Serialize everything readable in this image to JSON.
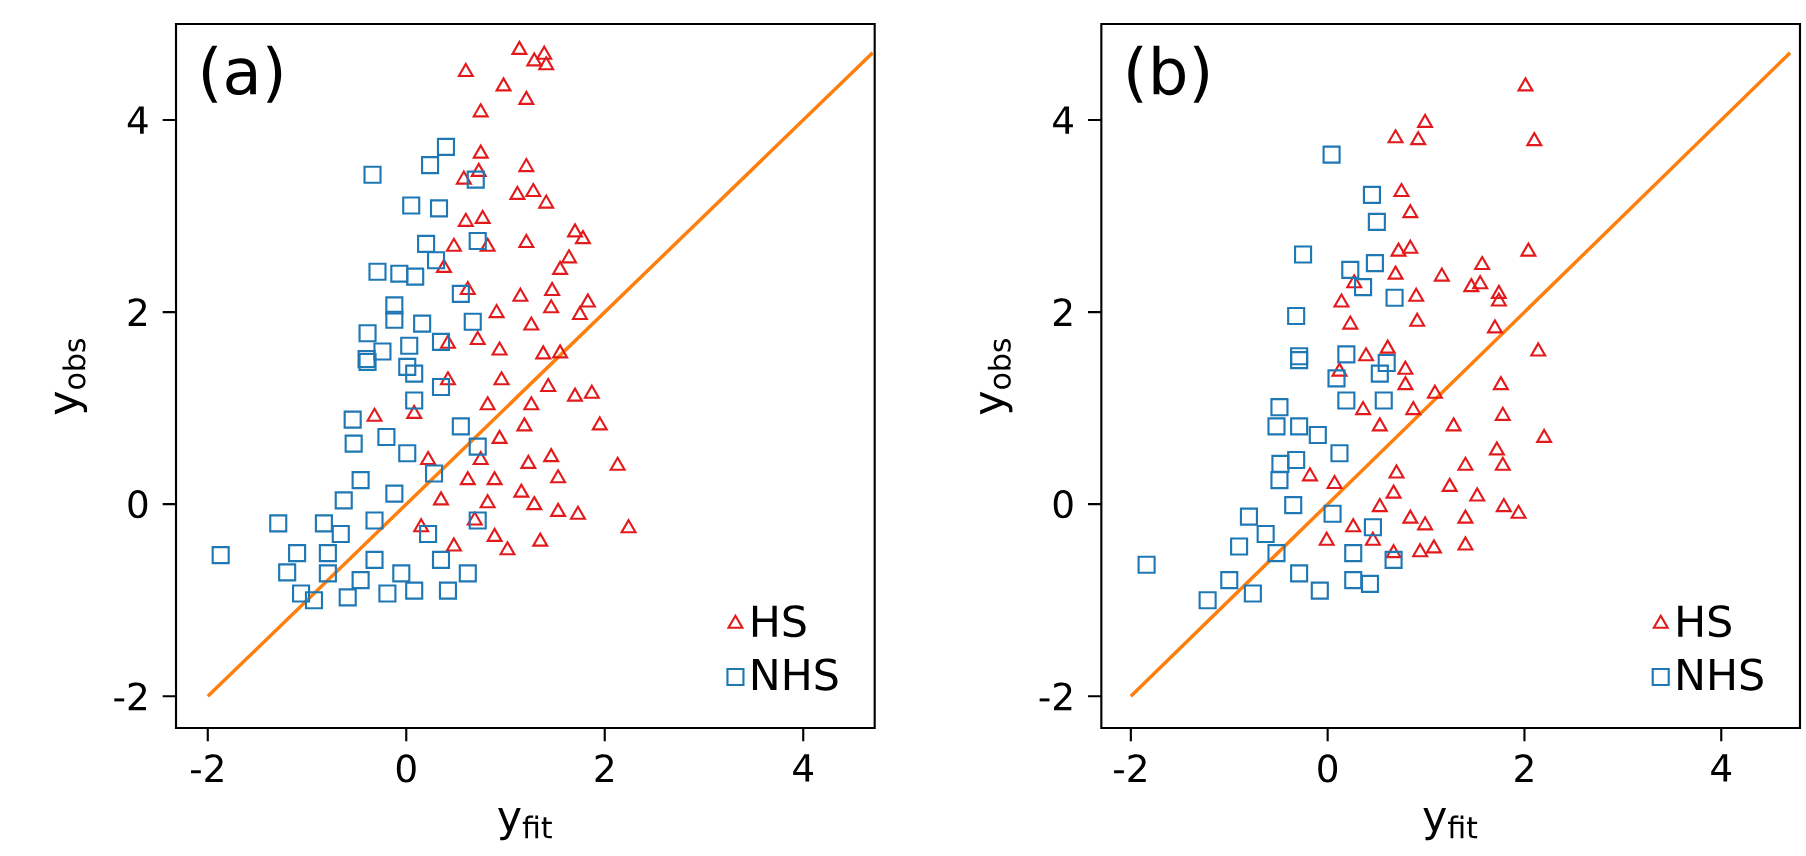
{
  "chart_data": [
    {
      "type": "scatter",
      "xlabel": "y$_{fit}$",
      "ylabel": "y$_{obs}$",
      "annotations": [
        "(a)"
      ],
      "xlim": [
        -2.32,
        4.72
      ],
      "ylim": [
        -2.33,
        5.0
      ],
      "xticks": [
        -2,
        0,
        2,
        4
      ],
      "yticks": [
        -2,
        0,
        2,
        4
      ],
      "legend": "bottom right",
      "series": [
        {
          "name": "HS",
          "color": "#e31a1c",
          "marker": "triangle",
          "x": [
            1.14,
            1.29,
            1.39,
            1.41,
            0.6,
            0.98,
            1.21,
            0.75,
            0.75,
            1.21,
            0.58,
            0.73,
            1.12,
            1.28,
            1.41,
            0.6,
            0.77,
            1.21,
            1.7,
            1.78,
            0.82,
            0.48,
            1.64,
            1.55,
            0.38,
            0.62,
            1.15,
            1.47,
            1.83,
            1.75,
            1.46,
            0.91,
            1.26,
            0.72,
            0.94,
            1.38,
            1.55,
            0.42,
            1.87,
            1.7,
            1.95,
            2.13,
            2.24,
            1.46,
            1.53,
            1.19,
            0.94,
            1.23,
            1.16,
            1.29,
            1.53,
            1.73,
            1.35,
            1.02,
            0.89,
            0.82,
            0.89,
            0.62,
            0.69,
            0.48,
            0.35,
            0.22,
            0.08,
            -0.32,
            0.82,
            1.26,
            1.43,
            0.96,
            0.42,
            0.15,
            0.75
          ],
          "values": [
            4.73,
            4.61,
            4.68,
            4.57,
            4.5,
            4.35,
            4.21,
            4.08,
            3.65,
            3.51,
            3.38,
            3.46,
            3.22,
            3.25,
            3.13,
            2.94,
            2.97,
            2.72,
            2.83,
            2.76,
            2.68,
            2.68,
            2.56,
            2.44,
            2.46,
            2.23,
            2.16,
            2.22,
            2.1,
            1.97,
            2.04,
            1.99,
            1.86,
            1.71,
            1.6,
            1.56,
            1.57,
            1.67,
            1.15,
            1.12,
            0.82,
            0.4,
            -0.25,
            0.49,
            0.27,
            0.81,
            0.68,
            0.42,
            0.12,
            -0.01,
            -0.08,
            -0.11,
            -0.39,
            -0.48,
            -0.34,
            0.01,
            0.25,
            0.25,
            -0.17,
            -0.44,
            0.04,
            0.46,
            0.94,
            0.91,
            1.03,
            1.03,
            1.22,
            1.29,
            1.29,
            -0.24,
            0.46
          ]
        },
        {
          "name": "NHS",
          "color": "#1f77b4",
          "marker": "square",
          "x": [
            0.4,
            0.24,
            -0.34,
            0.7,
            0.05,
            0.33,
            0.2,
            0.72,
            -0.29,
            -0.07,
            0.09,
            0.3,
            0.55,
            -0.12,
            -0.12,
            0.16,
            0.67,
            -0.39,
            -0.4,
            -0.24,
            0.03,
            0.35,
            0.01,
            -1.87,
            -1.29,
            -0.83,
            -1.1,
            -1.2,
            -1.06,
            -0.93,
            -0.59,
            -0.19,
            0.08,
            0.42,
            0.62,
            0.72,
            0.72,
            0.55,
            -0.54,
            -0.53,
            -0.2,
            -0.63,
            -0.66,
            -0.32,
            -0.46,
            -0.12,
            0.01,
            0.28,
            0.22,
            -0.32,
            -0.79,
            0.08,
            0.35,
            0.08,
            -0.39,
            -0.79,
            -0.05,
            0.35,
            -0.46
          ],
          "values": [
            3.72,
            3.53,
            3.43,
            3.38,
            3.11,
            3.08,
            2.71,
            2.74,
            2.42,
            2.4,
            2.37,
            2.54,
            2.19,
            2.07,
            1.92,
            1.88,
            1.9,
            1.78,
            1.51,
            1.59,
            1.65,
            1.69,
            1.43,
            -0.53,
            -0.2,
            -0.2,
            -0.51,
            -0.71,
            -0.93,
            -1.0,
            -0.97,
            -0.93,
            -0.9,
            -0.9,
            -0.72,
            -0.17,
            0.6,
            0.81,
            0.88,
            0.63,
            0.7,
            0.04,
            -0.31,
            -0.17,
            0.25,
            0.11,
            0.53,
            0.32,
            -0.31,
            -0.58,
            -0.72,
            1.08,
            1.22,
            1.36,
            1.48,
            -0.51,
            -0.72,
            -0.58,
            -0.79
          ]
        },
        {
          "type": "line",
          "color": "#ff7f0e",
          "x": [
            -2,
            4.7
          ],
          "values": [
            -2,
            4.7
          ]
        }
      ]
    },
    {
      "type": "scatter",
      "xlabel": "y$_{fit}$",
      "ylabel": "y$_{obs}$",
      "annotations": [
        "(b)"
      ],
      "xlim": [
        -2.3,
        4.8
      ],
      "ylim": [
        -2.33,
        5.0
      ],
      "xticks": [
        -2,
        0,
        2,
        4
      ],
      "yticks": [
        -2,
        0,
        2,
        4
      ],
      "legend": "bottom right",
      "series": [
        {
          "name": "HS",
          "color": "#e31a1c",
          "marker": "triangle",
          "x": [
            2.01,
            2.1,
            0.99,
            0.69,
            0.92,
            0.75,
            0.84,
            0.72,
            0.84,
            2.04,
            0.69,
            1.16,
            1.57,
            1.46,
            1.55,
            1.74,
            1.74,
            0.9,
            0.14,
            0.27,
            0.23,
            0.91,
            1.7,
            2.14,
            0.61,
            0.39,
            0.79,
            1.76,
            1.78,
            2.2,
            1.28,
            1.09,
            0.79,
            1.72,
            1.78,
            1.4,
            1.24,
            1.52,
            1.79,
            1.94,
            1.4,
            1.4,
            0.99,
            1.08,
            0.94,
            0.84,
            0.67,
            0.7,
            0.53,
            0.36,
            0.87,
            0.07,
            -0.18,
            -0.01,
            0.26,
            0.46,
            0.67,
            0.53,
            0.12
          ],
          "values": [
            4.35,
            3.78,
            3.97,
            3.81,
            3.79,
            3.25,
            3.03,
            2.63,
            2.66,
            2.63,
            2.39,
            2.37,
            2.49,
            2.26,
            2.29,
            2.19,
            2.11,
            2.16,
            2.1,
            2.3,
            1.87,
            1.9,
            1.83,
            1.59,
            1.62,
            1.54,
            1.4,
            1.24,
            0.92,
            0.69,
            0.81,
            1.15,
            1.24,
            0.56,
            0.4,
            0.4,
            0.18,
            0.08,
            -0.03,
            -0.1,
            -0.15,
            -0.43,
            -0.22,
            -0.46,
            -0.5,
            -0.15,
            0.11,
            0.32,
            0.81,
            0.98,
            0.98,
            0.21,
            0.29,
            -0.38,
            -0.24,
            -0.38,
            -0.51,
            -0.03,
            1.38
          ]
        },
        {
          "name": "NHS",
          "color": "#1f77b4",
          "marker": "square",
          "x": [
            0.04,
            0.45,
            0.5,
            -0.25,
            0.23,
            0.48,
            0.36,
            0.68,
            -0.32,
            -0.29,
            0.19,
            0.6,
            -1.84,
            -1.22,
            -1.0,
            -0.76,
            -0.49,
            -0.52,
            -0.29,
            -0.1,
            -0.48,
            -0.32,
            -0.49,
            -0.8,
            -0.35,
            -0.63,
            -0.52,
            -0.29,
            -0.08,
            0.26,
            0.43,
            0.09,
            -0.29,
            0.19,
            0.57,
            0.53,
            0.12,
            0.05,
            0.46,
            0.26,
            0.67,
            -0.9
          ],
          "values": [
            3.64,
            3.22,
            2.94,
            2.6,
            2.44,
            2.51,
            2.26,
            2.15,
            1.96,
            1.54,
            1.56,
            1.47,
            -0.63,
            -1.0,
            -0.79,
            -0.93,
            1.01,
            0.81,
            0.81,
            0.72,
            0.42,
            0.46,
            0.25,
            -0.13,
            -0.01,
            -0.31,
            -0.51,
            -0.72,
            -0.9,
            -0.79,
            -0.83,
            1.31,
            1.5,
            1.08,
            1.08,
            1.36,
            0.53,
            -0.1,
            -0.24,
            -0.51,
            -0.58,
            -0.44
          ]
        },
        {
          "type": "line",
          "color": "#ff7f0e",
          "x": [
            -2,
            4.7
          ],
          "values": [
            -2,
            4.7
          ]
        }
      ]
    }
  ]
}
